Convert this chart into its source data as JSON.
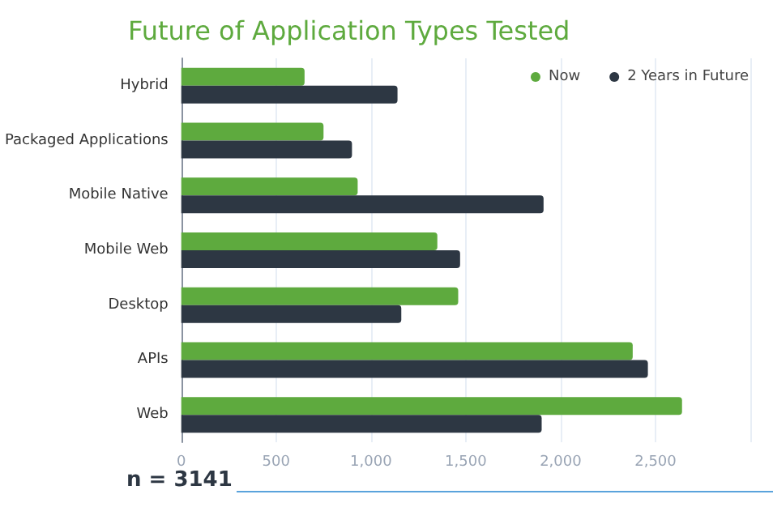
{
  "chart_data": {
    "type": "bar",
    "orientation": "horizontal",
    "title": "Future of Application Types Tested",
    "categories": [
      "Hybrid",
      "Packaged Applications",
      "Mobile Native",
      "Mobile Web",
      "Desktop",
      "APIs",
      "Web"
    ],
    "series": [
      {
        "name": "Now",
        "color": "#5eaa3e",
        "values": [
          650,
          750,
          930,
          1350,
          1460,
          2380,
          2640
        ]
      },
      {
        "name": "2 Years in Future",
        "color": "#2d3743",
        "values": [
          1140,
          900,
          1910,
          1470,
          1160,
          2460,
          1900
        ]
      }
    ],
    "xlim": [
      0,
      3000
    ],
    "xticks": [
      0,
      {
        "value": 500,
        "label": "500"
      },
      {
        "value": 1000,
        "label": "1,000"
      },
      {
        "value": 1500,
        "label": "1,500"
      },
      {
        "value": 2000,
        "label": "2,000"
      },
      {
        "value": 2500,
        "label": "2,500"
      },
      {
        "value": 3000,
        "label": null
      }
    ],
    "grid": "x",
    "legend": "top right",
    "annotations": [
      "n = 3141"
    ]
  }
}
